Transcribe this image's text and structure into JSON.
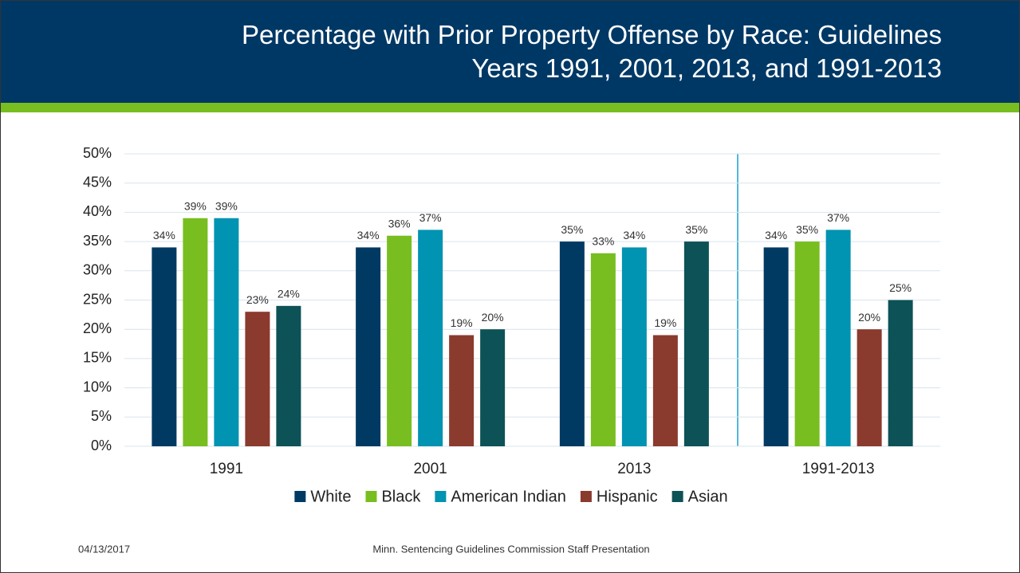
{
  "chart_data": {
    "type": "bar",
    "title": "Percentage with Prior Property Offense by Race: Guidelines Years 1991, 2001, 2013, and 1991-2013",
    "categories": [
      "1991",
      "2001",
      "2013",
      "1991-2013"
    ],
    "series": [
      {
        "name": "White",
        "color": "#003a63",
        "values": [
          34,
          34,
          35,
          34
        ],
        "value_labels": [
          "34%",
          "34%",
          "35%",
          "34%"
        ]
      },
      {
        "name": "Black",
        "color": "#78be20",
        "values": [
          39,
          36,
          33,
          35
        ],
        "value_labels": [
          "39%",
          "36%",
          "33%",
          "35%"
        ]
      },
      {
        "name": "American Indian",
        "color": "#0093b2",
        "values": [
          39,
          37,
          34,
          37
        ],
        "value_labels": [
          "39%",
          "37%",
          "34%",
          "37%"
        ]
      },
      {
        "name": "Hispanic",
        "color": "#8b3a2e",
        "values": [
          23,
          19,
          19,
          20
        ],
        "value_labels": [
          "23%",
          "19%",
          "19%",
          "20%"
        ]
      },
      {
        "name": "Asian",
        "color": "#0d5257",
        "values": [
          24,
          20,
          35,
          25
        ],
        "value_labels": [
          "24%",
          "20%",
          "35%",
          "25%"
        ]
      }
    ],
    "ylim": [
      0,
      50
    ],
    "yticks": [
      {
        "value": 0,
        "label": "0%"
      },
      {
        "value": 5,
        "label": "5%"
      },
      {
        "value": 10,
        "label": "10%"
      },
      {
        "value": 15,
        "label": "15%"
      },
      {
        "value": 20,
        "label": "20%"
      },
      {
        "value": 25,
        "label": "25%"
      },
      {
        "value": 30,
        "label": "30%"
      },
      {
        "value": 35,
        "label": "35%"
      },
      {
        "value": 40,
        "label": "40%"
      },
      {
        "value": 45,
        "label": "45%"
      },
      {
        "value": 50,
        "label": "50%"
      }
    ],
    "grid": true,
    "legend": "bottom"
  },
  "footer": {
    "date": "04/13/2017",
    "text": "Minn. Sentencing Guidelines Commission Staff Presentation"
  }
}
